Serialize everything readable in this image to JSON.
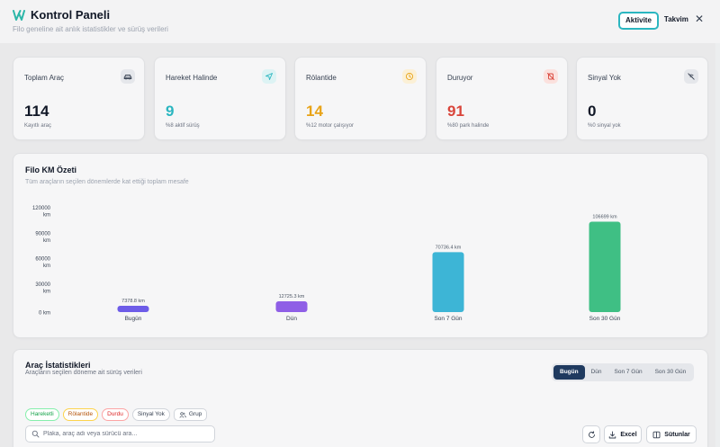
{
  "header": {
    "title": "Kontrol Paneli",
    "subtitle": "Filo geneline ait anlık istatistikler ve sürüş verileri",
    "tabs": [
      {
        "label": "Aktivite",
        "active": true
      },
      {
        "label": "Takvim",
        "active": false
      }
    ],
    "close_icon": "close-icon",
    "logo_color": "#2bb6a8"
  },
  "stats": [
    {
      "label": "Toplam Araç",
      "value": "114",
      "desc": "Kayıtlı araç",
      "icon": "car-icon",
      "color": "#111827",
      "icon_bg": "#e5e7eb"
    },
    {
      "label": "Hareket Halinde",
      "value": "9",
      "desc": "%8 aktif sürüş",
      "icon": "navigation-icon",
      "color": "#2bb6c0",
      "icon_bg": "#ddf3f4"
    },
    {
      "label": "Rölantide",
      "value": "14",
      "desc": "%12 motor çalışıyor",
      "icon": "clock-icon",
      "color": "#e8a317",
      "icon_bg": "#fbf0d6"
    },
    {
      "label": "Duruyor",
      "value": "91",
      "desc": "%80 park halinde",
      "icon": "bell-off-icon",
      "color": "#d9453b",
      "icon_bg": "#fbe1de"
    },
    {
      "label": "Sinyal Yok",
      "value": "0",
      "desc": "%0 sinyal yok",
      "icon": "signal-off-icon",
      "color": "#111827",
      "icon_bg": "#e5e7eb"
    }
  ],
  "km_summary": {
    "title": "Filo KM Özeti",
    "subtitle": "Tüm araçların seçilen dönemlerde kat ettiği toplam mesafe"
  },
  "chart_data": {
    "type": "bar",
    "categories": [
      "Bugün",
      "Dün",
      "Son 7 Gün",
      "Son 30 Gün"
    ],
    "values": [
      7378.8,
      12725.3,
      70736.4,
      106699
    ],
    "data_labels": [
      "7378.8 km",
      "12725.3 km",
      "70736.4 km",
      "106699 km"
    ],
    "colors": [
      "#6d5ce8",
      "#8f5fe6",
      "#3db5d6",
      "#3fbf84"
    ],
    "yticks": [
      0,
      30000,
      60000,
      90000,
      120000
    ],
    "ytick_unit": "km",
    "ylim": [
      0,
      120000
    ],
    "title": "",
    "xlabel": "",
    "ylabel": "",
    "grid": false
  },
  "vehicle_stats": {
    "title": "Araç İstatistikleri",
    "subtitle": "Araçların seçilen döneme ait sürüş verileri",
    "periods": [
      {
        "label": "Bugün",
        "active": true
      },
      {
        "label": "Dün",
        "active": false
      },
      {
        "label": "Son 7 Gün",
        "active": false
      },
      {
        "label": "Son 30 Gün",
        "active": false
      }
    ],
    "filters": [
      "Hareketli",
      "Rölantide",
      "Durdu",
      "Sinyal Yok"
    ],
    "group_label": "Grup",
    "search_placeholder": "Plaka, araç adı veya sürücü ara...",
    "search_value": "",
    "refresh_icon": "refresh-icon",
    "excel_label": "Excel",
    "columns_label": "Sütunlar"
  }
}
